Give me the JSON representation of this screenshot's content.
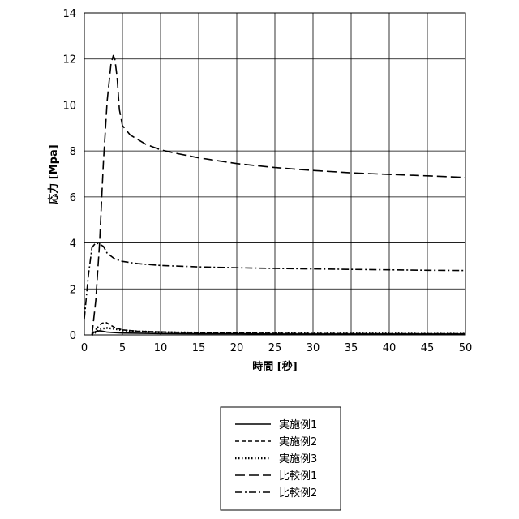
{
  "chart_data": {
    "type": "line",
    "title": "",
    "xlabel": "時間 [秒]",
    "ylabel": "応力 [Mpa]",
    "xlim": [
      0,
      50
    ],
    "ylim": [
      0,
      14
    ],
    "xticks": [
      0,
      5,
      10,
      15,
      20,
      25,
      30,
      35,
      40,
      45,
      50
    ],
    "yticks": [
      0,
      2,
      4,
      6,
      8,
      10,
      12,
      14
    ],
    "grid": true,
    "legend_position": "bottom-center",
    "series": [
      {
        "name": "実施例1",
        "style": "solid",
        "x": [
          1.0,
          1.2,
          1.5,
          2.0,
          2.5,
          3.0,
          4.0,
          5.0,
          10,
          15,
          20,
          25,
          30,
          35,
          40,
          45,
          50
        ],
        "y": [
          0.0,
          0.1,
          0.15,
          0.18,
          0.15,
          0.12,
          0.1,
          0.08,
          0.06,
          0.05,
          0.05,
          0.04,
          0.04,
          0.04,
          0.04,
          0.04,
          0.04
        ]
      },
      {
        "name": "実施例2",
        "style": "short-dash",
        "x": [
          1.0,
          1.3,
          1.8,
          2.3,
          2.8,
          3.3,
          4.0,
          5.0,
          7.0,
          10,
          15,
          20,
          25,
          30,
          35,
          40,
          45,
          50
        ],
        "y": [
          0.0,
          0.15,
          0.35,
          0.5,
          0.55,
          0.45,
          0.32,
          0.22,
          0.16,
          0.13,
          0.1,
          0.08,
          0.07,
          0.06,
          0.06,
          0.05,
          0.05,
          0.05
        ]
      },
      {
        "name": "実施例3",
        "style": "dotted",
        "x": [
          1.0,
          1.5,
          2.0,
          2.5,
          3.0,
          4.0,
          5.0,
          7.0,
          10,
          15,
          20,
          25,
          30,
          35,
          40,
          45,
          50
        ],
        "y": [
          0.0,
          0.12,
          0.22,
          0.28,
          0.3,
          0.26,
          0.2,
          0.15,
          0.12,
          0.1,
          0.08,
          0.07,
          0.06,
          0.06,
          0.06,
          0.05,
          0.05
        ]
      },
      {
        "name": "比較例1",
        "style": "long-dash",
        "x": [
          1.0,
          1.5,
          2.0,
          2.5,
          3.0,
          3.5,
          3.8,
          4.0,
          4.3,
          4.6,
          5.0,
          6.0,
          8.0,
          10,
          12,
          15,
          20,
          25,
          30,
          35,
          40,
          45,
          50
        ],
        "y": [
          0.0,
          1.5,
          4.0,
          7.5,
          10.2,
          11.8,
          12.15,
          12.0,
          11.2,
          9.8,
          9.1,
          8.7,
          8.3,
          8.05,
          7.9,
          7.7,
          7.45,
          7.28,
          7.15,
          7.05,
          6.98,
          6.92,
          6.85
        ]
      },
      {
        "name": "比較例2",
        "style": "dash-dot",
        "x": [
          0.0,
          0.5,
          1.0,
          1.5,
          2.0,
          2.5,
          3.0,
          4.0,
          5.0,
          7.0,
          10,
          15,
          20,
          25,
          30,
          35,
          40,
          45,
          50
        ],
        "y": [
          0.7,
          2.5,
          3.8,
          4.0,
          3.95,
          3.85,
          3.55,
          3.3,
          3.2,
          3.1,
          3.02,
          2.96,
          2.92,
          2.89,
          2.87,
          2.85,
          2.83,
          2.81,
          2.8
        ]
      }
    ]
  }
}
